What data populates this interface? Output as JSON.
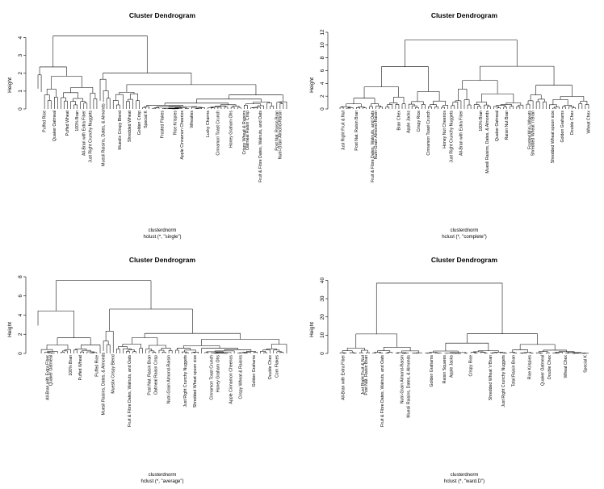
{
  "chart_data": [
    {
      "type": "dendrogram",
      "title": "Cluster Dendrogram",
      "ylabel": "Height",
      "xlabel": "clusterdnorm",
      "sub": "hclust (*, \"single\")",
      "ylim": [
        0,
        4.3
      ],
      "yticks": [
        0,
        1,
        2,
        3,
        4
      ],
      "top_height": 4.1,
      "n_leaves": 77,
      "seed": 11,
      "leaf_labels": [
        "Puffed Rice",
        "Quaker Oatmeal",
        "Puffed Wheat",
        "100% Bran",
        "All-Bran with Extra Fiber",
        "Just Right Crunchy Nuggets",
        "Muesli Raisins, Dates, & Almonds",
        "Mueslix Crispy Blend",
        "Shredded Wheat",
        "Golden Crisp",
        "Special K",
        "Frosted Flakes",
        "Rice Krispies",
        "Apple Cinnamon Cheerios",
        "Wheaties",
        "Lucky Charms",
        "Cinnamon Toast Crunch",
        "Honey Graham Ohs",
        "Crispy Wheat & Raisins",
        "Oatmeal Raisin Crisp",
        "Fruit & Fibre Dates, Walnuts, and Oats",
        "Post Nat. Raisin Bran",
        "Nutri-Grain Almond-Raisin"
      ]
    },
    {
      "type": "dendrogram",
      "title": "Cluster Dendrogram",
      "ylabel": "Height",
      "xlabel": "clusterdnorm",
      "sub": "hclust (*, \"complete\")",
      "ylim": [
        0,
        12
      ],
      "yticks": [
        0,
        2,
        4,
        6,
        8,
        10,
        12
      ],
      "top_height": 10.8,
      "n_leaves": 77,
      "seed": 23,
      "leaf_labels": [
        "Just Right Fruit & Nut",
        "Post Nat. Raisin Bran",
        "Fruit & Fibre Dates, Walnuts, and Oats",
        "Nutri-Grain Almond-Raisin",
        "Bran Chex",
        "Apple Jacks",
        "Crispy Rice",
        "Cinnamon Toast Crunch",
        "Honey Nut Cheerios",
        "Just Right Crunchy Nuggets",
        "All-Bran with Extra Fiber",
        "100% Bran",
        "Muesli Raisins, Dates, & Almonds",
        "Quaker Oatmeal",
        "Raisin Nut Bran",
        "Frosted Mini-Wheats",
        "Shredded Wheat 'n'Bran",
        "Shredded Wheat spoon size",
        "Golden Grahams",
        "Double Chex",
        "Wheat Chex"
      ]
    },
    {
      "type": "dendrogram",
      "title": "Cluster Dendrogram",
      "ylabel": "Height",
      "xlabel": "clusterdnorm",
      "sub": "hclust (*, \"average\")",
      "ylim": [
        0,
        8
      ],
      "yticks": [
        0,
        2,
        4,
        6,
        8
      ],
      "top_height": 7.6,
      "n_leaves": 77,
      "seed": 37,
      "leaf_labels": [
        "All-Bran with Extra Fiber",
        "Quaker Oatmeal",
        "100% Bran",
        "Puffed Wheat",
        "Puffed Rice",
        "Muesli Raisins, Dates, & Almonds",
        "Mueslix Crispy Blend",
        "Fruit & Fibre Dates, Walnuts, and Oats",
        "Post Nat. Raisin Bran",
        "Oatmeal Raisin Crisp",
        "Nutri-Grain Almond-Raisin",
        "Just Right Crunchy Nuggets",
        "Shredded Wheat spoon size",
        "Cinnamon Toast Crunch",
        "Honey Graham Ohs",
        "Apple Cinnamon Cheerios",
        "Crispy Wheat & Raisins",
        "Golden Grahams",
        "Double Chex",
        "Corn Flakes"
      ]
    },
    {
      "type": "dendrogram",
      "title": "Cluster Dendrogram",
      "ylabel": "Height",
      "xlabel": "clusterdnorm",
      "sub": "hclust (*, \"ward.D\")",
      "ylim": [
        0,
        42
      ],
      "yticks": [
        0,
        10,
        20,
        30,
        40
      ],
      "top_height": 38.5,
      "n_leaves": 77,
      "seed": 53,
      "leaf_labels": [
        "All-Bran with Extra Fiber",
        "Just Right Fruit & Nut",
        "Post Nat. Raisin Bran",
        "Fruit & Fibre Dates, Walnuts, and Oats",
        "Nutri-Grain Almond-Raisin",
        "Muesli Raisins, Dates, & Almonds",
        "Golden Grahams",
        "Raisin Squares",
        "Apple Jacks",
        "Crispy Rice",
        "Shredded Wheat 'n'Bran",
        "Just Right Crunchy Nuggets",
        "Total Raisin Bran",
        "Rice Krispies",
        "Quaker Oatmeal",
        "Double Chex",
        "Wheat Chex",
        "Special K"
      ]
    }
  ]
}
